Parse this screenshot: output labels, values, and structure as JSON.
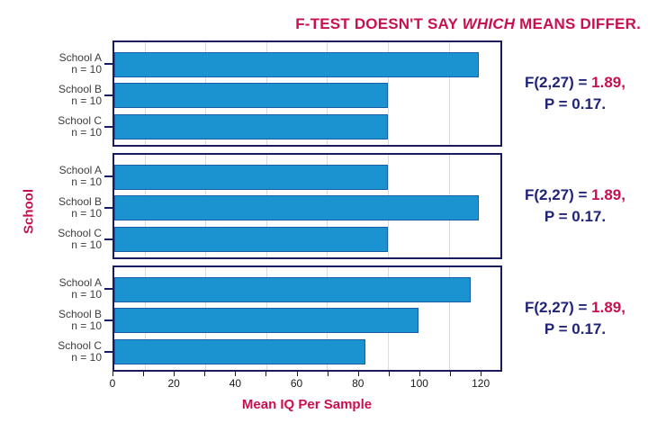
{
  "title": {
    "pre": "F-TEST DOESN'T SAY ",
    "italic": "WHICH",
    "post": " MEANS DIFFER."
  },
  "colors": {
    "crimson": "#C8104E",
    "navy": "#202478",
    "bar-fill": "#1B93D0",
    "bar-border": "#1A5FA5",
    "panel-border": "#1A1A5E",
    "gridline": "#D8DAE6",
    "label-gray": "#3D3D3D",
    "tick-black": "#1A1A1A"
  },
  "chart_data": {
    "type": "bar",
    "orientation": "horizontal",
    "title": "F-TEST DOESN'T SAY WHICH MEANS DIFFER.",
    "xlabel": "Mean IQ Per Sample",
    "ylabel": "School",
    "xlim": [
      0,
      127
    ],
    "x_major_ticks": [
      0,
      20,
      40,
      60,
      80,
      100,
      120
    ],
    "x_minor_tick_step": 10,
    "gridline_positions": [
      10,
      30,
      50,
      70,
      90,
      110
    ],
    "grid": true,
    "legend": false,
    "categories": [
      [
        "School A",
        "n = 10"
      ],
      [
        "School B",
        "n = 10"
      ],
      [
        "School C",
        "n = 10"
      ]
    ],
    "panels": [
      {
        "name": "top",
        "values": [
          120,
          90,
          90
        ],
        "f_prefix": "F(2,27) = ",
        "f_value": "1.89,",
        "p_text": "P = 0.17."
      },
      {
        "name": "middle",
        "values": [
          90,
          120,
          90
        ],
        "f_prefix": "F(2,27) = ",
        "f_value": "1.89,",
        "p_text": "P = 0.17."
      },
      {
        "name": "bottom",
        "values": [
          117.3,
          100,
          82.7
        ],
        "f_prefix": "F(2,27) = ",
        "f_value": "1.89,",
        "p_text": "P = 0.17."
      }
    ]
  }
}
